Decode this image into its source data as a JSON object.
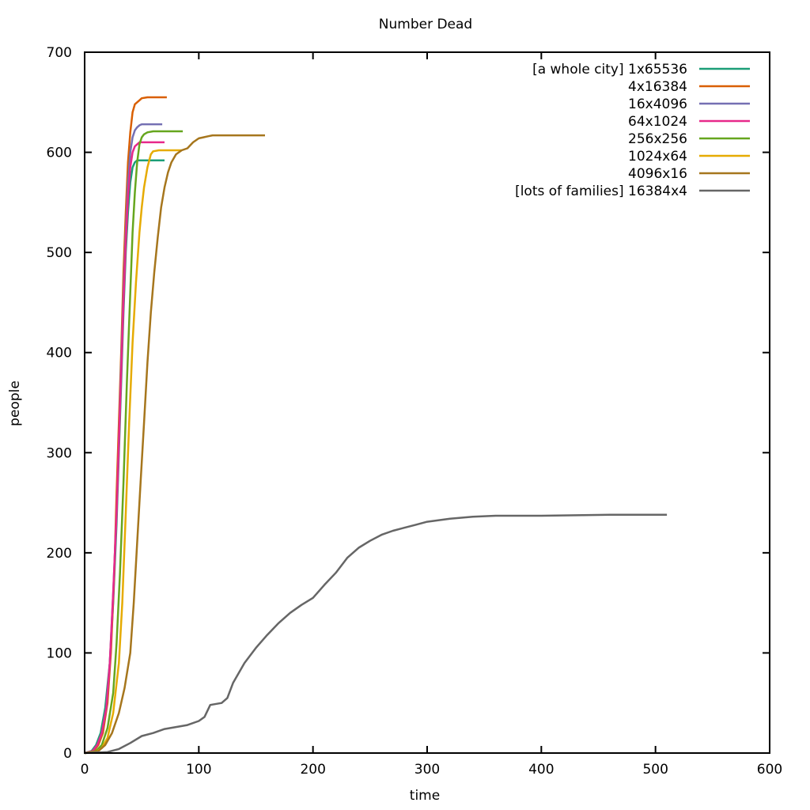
{
  "chart_data": {
    "type": "line",
    "title": "Number Dead",
    "xlabel": "time",
    "ylabel": "people",
    "xlim": [
      0,
      600
    ],
    "ylim": [
      0,
      700
    ],
    "xticks": [
      0,
      100,
      200,
      300,
      400,
      500,
      600
    ],
    "yticks": [
      0,
      100,
      200,
      300,
      400,
      500,
      600,
      700
    ],
    "grid": false,
    "legend_position": "top-right",
    "series": [
      {
        "name": "[a whole city] 1x65536",
        "color": "#1b9e77",
        "x": [
          0,
          6,
          10,
          14,
          18,
          22,
          25,
          28,
          30,
          32,
          34,
          36,
          38,
          40,
          42,
          44,
          46,
          48,
          70
        ],
        "y": [
          0,
          2,
          8,
          20,
          45,
          90,
          150,
          230,
          300,
          370,
          440,
          500,
          540,
          570,
          585,
          590,
          592,
          592,
          592
        ]
      },
      {
        "name": "4x16384",
        "color": "#d95f02",
        "x": [
          0,
          8,
          12,
          16,
          20,
          23,
          26,
          28,
          30,
          32,
          34,
          36,
          38,
          40,
          42,
          44,
          46,
          48,
          50,
          55,
          60,
          72
        ],
        "y": [
          0,
          2,
          8,
          20,
          50,
          100,
          180,
          260,
          330,
          400,
          480,
          540,
          590,
          620,
          640,
          648,
          650,
          652,
          654,
          655,
          655,
          655
        ]
      },
      {
        "name": "16x4096",
        "color": "#7570b3",
        "x": [
          0,
          7,
          11,
          15,
          19,
          22,
          25,
          28,
          30,
          32,
          34,
          36,
          38,
          40,
          42,
          44,
          46,
          48,
          50,
          55,
          68
        ],
        "y": [
          0,
          2,
          8,
          20,
          45,
          90,
          160,
          240,
          310,
          390,
          460,
          520,
          570,
          600,
          615,
          622,
          625,
          627,
          628,
          628,
          628
        ]
      },
      {
        "name": "64x1024",
        "color": "#e7298a",
        "x": [
          0,
          7,
          11,
          15,
          19,
          22,
          25,
          28,
          30,
          32,
          34,
          36,
          38,
          40,
          42,
          44,
          46,
          48,
          50,
          55,
          70
        ],
        "y": [
          0,
          2,
          8,
          20,
          45,
          90,
          160,
          240,
          310,
          380,
          450,
          510,
          555,
          585,
          600,
          606,
          608,
          610,
          610,
          610,
          610
        ]
      },
      {
        "name": "256x256",
        "color": "#66a61e",
        "x": [
          0,
          10,
          15,
          20,
          25,
          28,
          31,
          34,
          37,
          40,
          42,
          44,
          46,
          48,
          50,
          52,
          55,
          60,
          65,
          86
        ],
        "y": [
          0,
          2,
          8,
          25,
          60,
          110,
          180,
          270,
          370,
          460,
          520,
          560,
          590,
          608,
          615,
          618,
          620,
          621,
          621,
          621
        ]
      },
      {
        "name": "1024x64",
        "color": "#e6ab02",
        "x": [
          0,
          10,
          15,
          20,
          25,
          30,
          33,
          36,
          39,
          42,
          45,
          48,
          50,
          52,
          55,
          58,
          60,
          65,
          70,
          85
        ],
        "y": [
          0,
          1,
          5,
          15,
          40,
          90,
          150,
          240,
          330,
          410,
          470,
          520,
          545,
          565,
          585,
          598,
          601,
          602,
          602,
          602
        ]
      },
      {
        "name": "4096x16",
        "color": "#a6761d",
        "x": [
          0,
          12,
          18,
          24,
          30,
          35,
          40,
          43,
          46,
          49,
          52,
          55,
          58,
          61,
          64,
          67,
          70,
          73,
          76,
          80,
          85,
          90,
          95,
          100,
          104,
          108,
          112,
          158
        ],
        "y": [
          0,
          2,
          8,
          20,
          40,
          65,
          100,
          150,
          210,
          270,
          330,
          390,
          440,
          480,
          515,
          545,
          565,
          580,
          590,
          598,
          602,
          604,
          610,
          614,
          615,
          616,
          617,
          617
        ]
      },
      {
        "name": "[lots of families] 16384x4",
        "color": "#666666",
        "x": [
          0,
          20,
          30,
          40,
          50,
          60,
          70,
          80,
          90,
          100,
          105,
          110,
          120,
          125,
          130,
          140,
          150,
          160,
          170,
          180,
          190,
          200,
          210,
          220,
          230,
          240,
          250,
          260,
          270,
          280,
          290,
          300,
          320,
          340,
          360,
          400,
          460,
          510
        ],
        "y": [
          0,
          1,
          4,
          10,
          17,
          20,
          24,
          26,
          28,
          32,
          36,
          48,
          50,
          55,
          70,
          90,
          105,
          118,
          130,
          140,
          148,
          155,
          168,
          180,
          195,
          205,
          212,
          218,
          222,
          225,
          228,
          231,
          234,
          236,
          237,
          237,
          238,
          238
        ]
      }
    ]
  }
}
